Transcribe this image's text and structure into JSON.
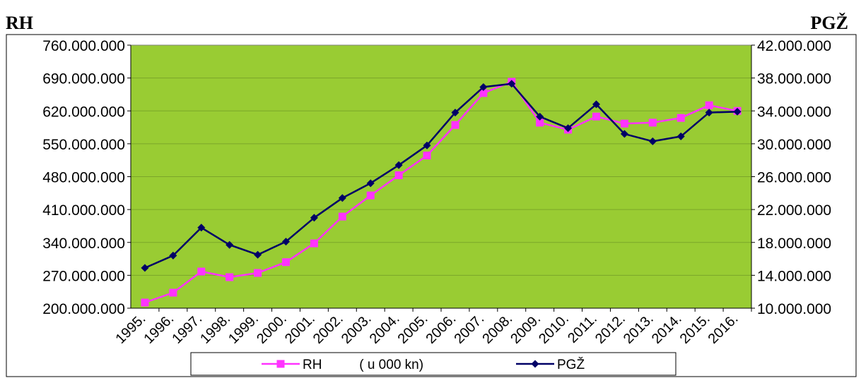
{
  "header": {
    "left_label": "RH",
    "right_label": "PGŽ"
  },
  "chart_data": {
    "type": "line",
    "x": [
      "1995.",
      "1996.",
      "1997.",
      "1998.",
      "1999.",
      "2000.",
      "2001.",
      "2002.",
      "2003.",
      "2004.",
      "2005.",
      "2006.",
      "2007.",
      "2008.",
      "2009.",
      "2010.",
      "2011.",
      "2012.",
      "2013.",
      "2014.",
      "2015.",
      "2016."
    ],
    "y_left": {
      "ylim": [
        200000000,
        760000000
      ],
      "ticks": [
        "200.000.000",
        "270.000.000",
        "340.000.000",
        "410.000.000",
        "480.000.000",
        "550.000.000",
        "620.000.000",
        "690.000.000",
        "760.000.000"
      ]
    },
    "y_right": {
      "ylim": [
        10000000,
        42000000
      ],
      "ticks": [
        "10.000.000",
        "14.000.000",
        "18.000.000",
        "22.000.000",
        "26.000.000",
        "30.000.000",
        "34.000.000",
        "38.000.000",
        "42.000.000"
      ]
    },
    "series": [
      {
        "name": "RH          ( u 000 kn)",
        "axis": "left",
        "color": "#ff33ff",
        "marker": "square",
        "values": [
          212000000,
          233000000,
          278000000,
          266000000,
          275000000,
          298000000,
          338000000,
          395000000,
          440000000,
          483000000,
          525000000,
          590000000,
          658000000,
          682000000,
          595000000,
          580000000,
          608000000,
          593000000,
          595000000,
          605000000,
          632000000,
          620000000
        ]
      },
      {
        "name": "PGŽ",
        "axis": "right",
        "color": "#000066",
        "marker": "diamond",
        "values": [
          14900000,
          16400000,
          19800000,
          17700000,
          16500000,
          18100000,
          21000000,
          23400000,
          25200000,
          27400000,
          29800000,
          33800000,
          36900000,
          37300000,
          33300000,
          31900000,
          34800000,
          31200000,
          30300000,
          30900000,
          33800000,
          33900000
        ]
      }
    ],
    "grid": true,
    "legend_position": "bottom",
    "plot_background": "#99cc33",
    "gridline_color": "#7ba62a"
  }
}
